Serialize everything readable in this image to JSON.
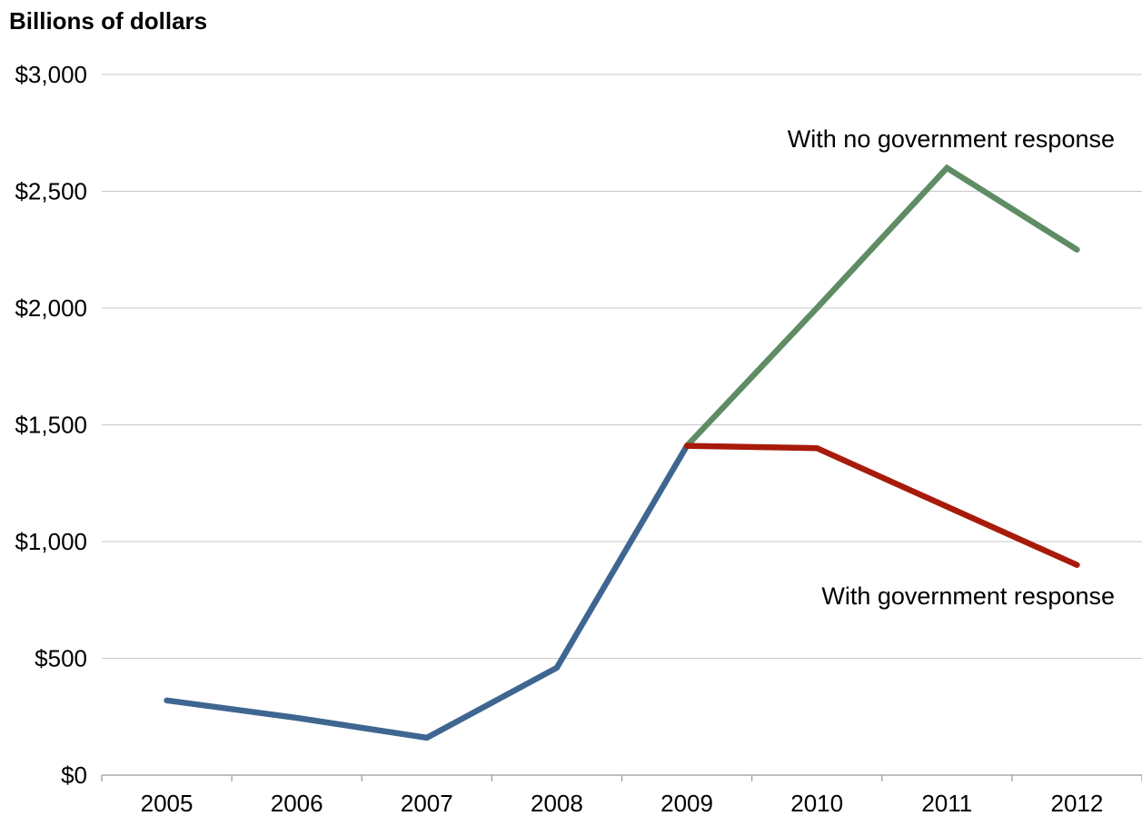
{
  "chart_data": {
    "type": "line",
    "title": "",
    "ylabel": "Billions of dollars",
    "xlabel": "",
    "ylim": [
      0,
      3000
    ],
    "yticks": [
      0,
      500,
      1000,
      1500,
      2000,
      2500,
      3000
    ],
    "ytick_labels": [
      "$0",
      "$500",
      "$1,000",
      "$1,500",
      "$2,000",
      "$2,500",
      "$3,000"
    ],
    "categories": [
      "2005",
      "2006",
      "2007",
      "2008",
      "2009",
      "2010",
      "2011",
      "2012"
    ],
    "grid": true,
    "legend": "none",
    "series": [
      {
        "key": "base",
        "color": "#3e6690",
        "x": [
          "2005",
          "2006",
          "2007",
          "2008",
          "2009"
        ],
        "values": [
          320,
          245,
          160,
          460,
          1410
        ]
      },
      {
        "key": "no-response",
        "name": "With no government response",
        "color": "#5f8c65",
        "x": [
          "2009",
          "2010",
          "2011",
          "2012"
        ],
        "values": [
          1410,
          2000,
          2600,
          2250
        ]
      },
      {
        "key": "with-response",
        "name": "With government response",
        "color": "#a81a0a",
        "x": [
          "2009",
          "2010",
          "2011",
          "2012"
        ],
        "values": [
          1410,
          1400,
          1150,
          900
        ]
      }
    ]
  }
}
